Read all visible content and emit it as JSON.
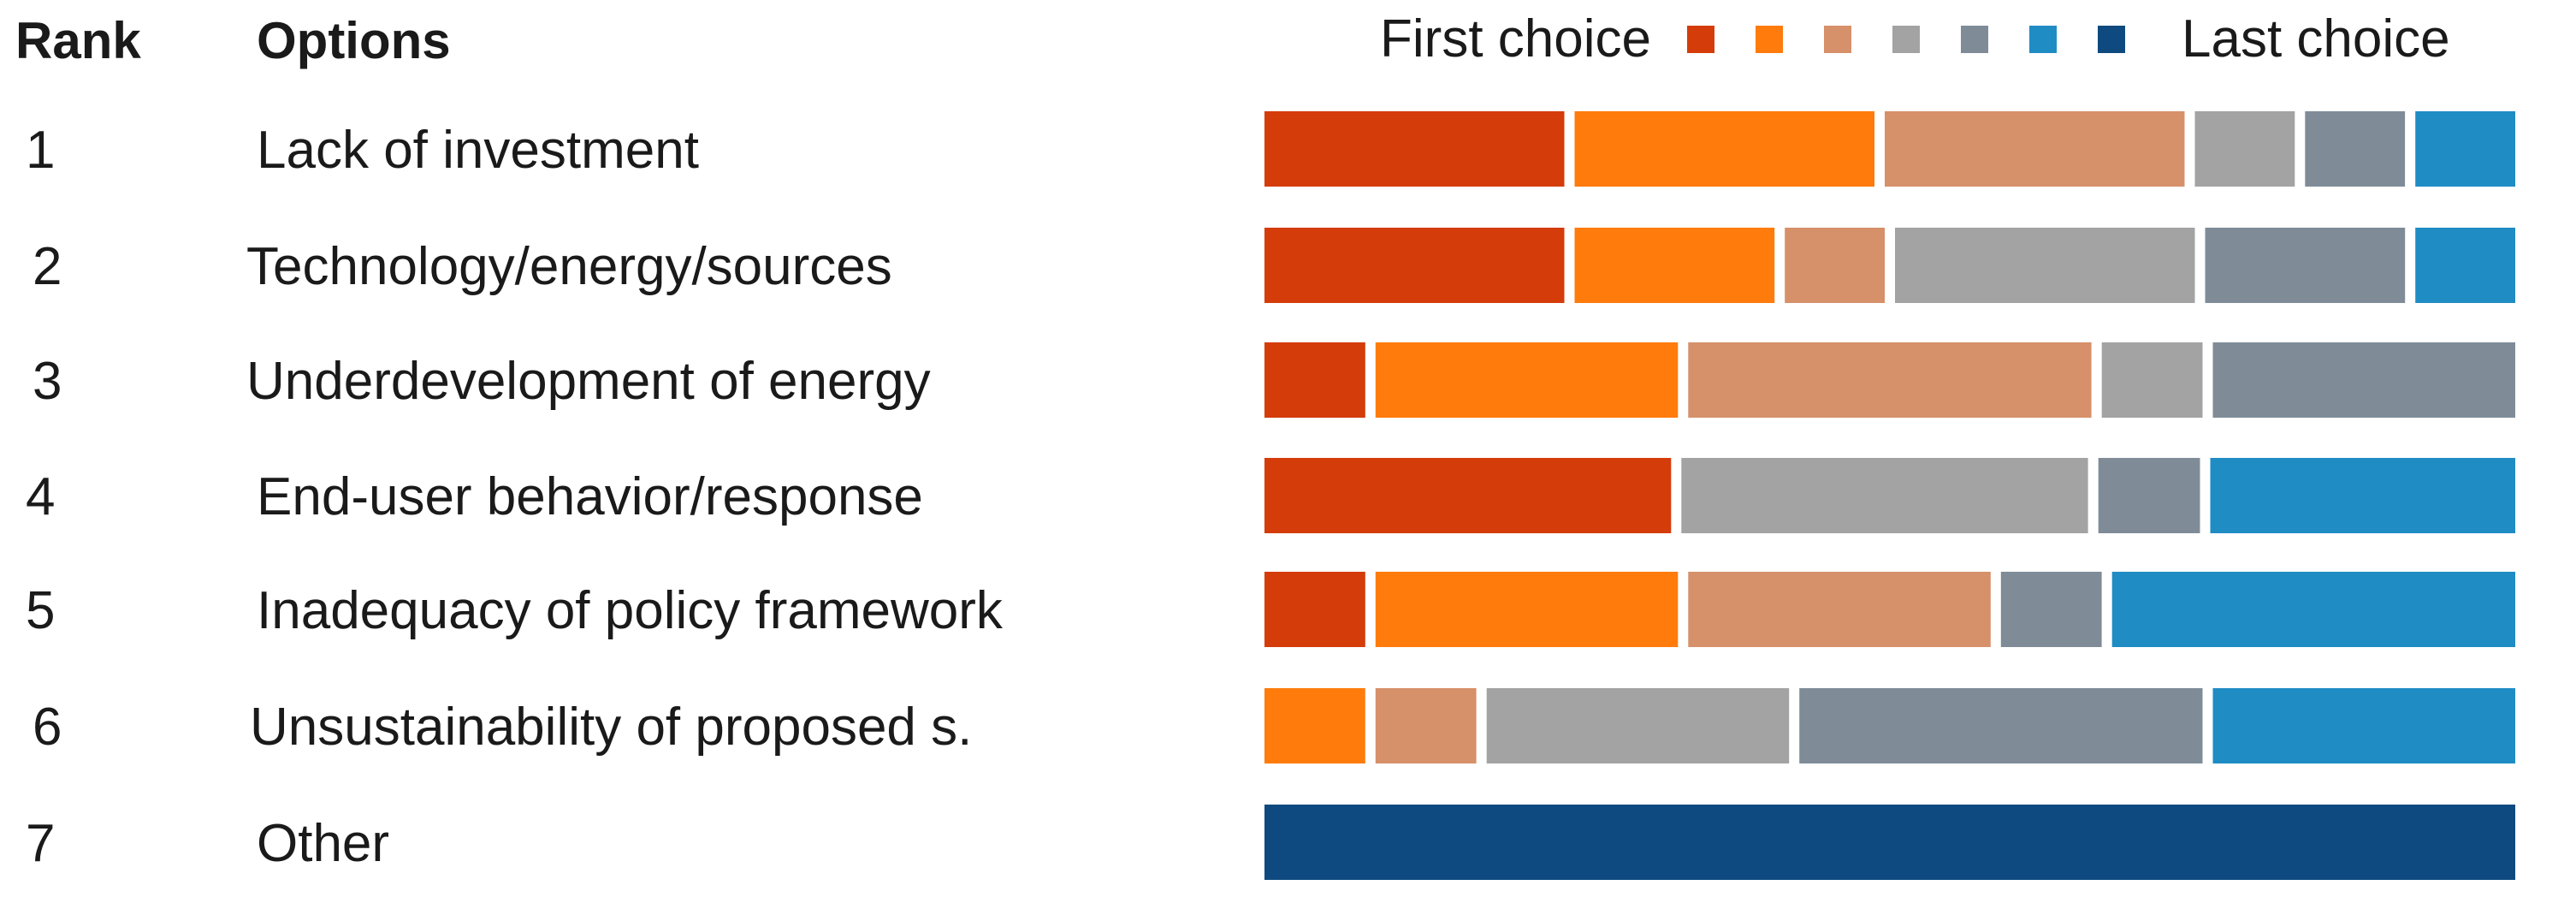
{
  "chart_data": {
    "type": "bar",
    "orientation": "horizontal",
    "stacked": true,
    "headers": {
      "rank": "Rank",
      "options": "Options"
    },
    "legend": {
      "start_label": "First choice",
      "end_label": "Last choice",
      "placement": "top-right",
      "colors": [
        "#D43C0A",
        "#FF7B0C",
        "#D6906A",
        "#A3A3A3",
        "#7F8C98",
        "#1F8CC4",
        "#0E4A80"
      ]
    },
    "rows": [
      {
        "rank": "1",
        "option": "Lack of investment",
        "shares": [
          3,
          3,
          3,
          1,
          1,
          1,
          0
        ]
      },
      {
        "rank": "2",
        "option": "Technology/energy/sources",
        "shares": [
          3,
          2,
          1,
          3,
          2,
          1,
          0
        ]
      },
      {
        "rank": "3",
        "option": "Underdevelopment of energy",
        "shares": [
          1,
          3,
          4,
          1,
          3,
          0,
          0
        ]
      },
      {
        "rank": "4",
        "option": "End-user behavior/response",
        "shares": [
          4,
          0,
          0,
          4,
          1,
          3,
          0
        ]
      },
      {
        "rank": "5",
        "option": "Inadequacy of policy framework",
        "shares": [
          1,
          3,
          3,
          0,
          1,
          4,
          0
        ]
      },
      {
        "rank": "6",
        "option": "Unsustainability of proposed s.",
        "shares": [
          0,
          1,
          1,
          3,
          4,
          3,
          0
        ]
      },
      {
        "rank": "7",
        "option": "Other",
        "shares": [
          0,
          0,
          0,
          0,
          0,
          0,
          12
        ]
      }
    ]
  }
}
